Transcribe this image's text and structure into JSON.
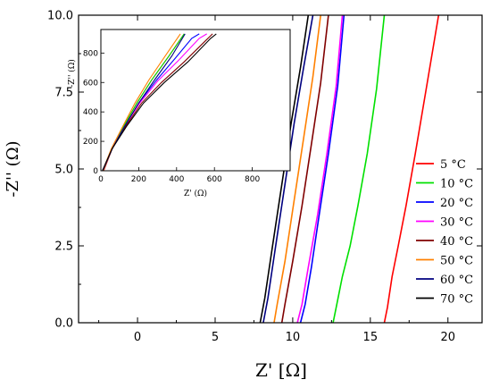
{
  "chart_data": [
    {
      "type": "line",
      "xlabel": "Z' [Ω]",
      "ylabel": "-Z'' (Ω)",
      "xlim": [
        -3.8,
        22.2
      ],
      "ylim": [
        0,
        10
      ],
      "xticks": [
        0,
        5,
        10,
        15,
        20
      ],
      "xtick_labels": [
        "0",
        "5",
        "10",
        "15",
        "20"
      ],
      "yticks": [
        0.0,
        2.5,
        5.0,
        7.5,
        10.0
      ],
      "ytick_labels": [
        "0.0",
        "2.5",
        "5.0",
        "7.5",
        "10.0"
      ],
      "grid": false,
      "legend_position": "right",
      "series": [
        {
          "name": "5 °C",
          "color": "#ff0000",
          "points": [
            [
              15.9,
              0
            ],
            [
              16.1,
              0.5
            ],
            [
              16.4,
              1.5
            ],
            [
              16.8,
              2.5
            ],
            [
              17.3,
              3.8
            ],
            [
              17.9,
              5.5
            ],
            [
              18.6,
              7.6
            ],
            [
              19.4,
              10
            ]
          ]
        },
        {
          "name": "10 °C",
          "color": "#00e000",
          "points": [
            [
              12.6,
              0
            ],
            [
              12.8,
              0.5
            ],
            [
              13.2,
              1.5
            ],
            [
              13.7,
              2.5
            ],
            [
              14.2,
              3.8
            ],
            [
              14.8,
              5.5
            ],
            [
              15.4,
              7.6
            ],
            [
              15.9,
              10
            ]
          ]
        },
        {
          "name": "20 °C",
          "color": "#0000ff",
          "points": [
            [
              10.5,
              0
            ],
            [
              10.8,
              0.6
            ],
            [
              11.2,
              1.8
            ],
            [
              11.7,
              3.5
            ],
            [
              12.3,
              5.5
            ],
            [
              12.9,
              7.7
            ],
            [
              13.3,
              10
            ]
          ]
        },
        {
          "name": "30 °C",
          "color": "#ff00ff",
          "points": [
            [
              10.3,
              0
            ],
            [
              10.6,
              0.6
            ],
            [
              11.0,
              1.8
            ],
            [
              11.6,
              3.5
            ],
            [
              12.2,
              5.5
            ],
            [
              12.8,
              7.7
            ],
            [
              13.2,
              10
            ]
          ]
        },
        {
          "name": "40 °C",
          "color": "#800000",
          "points": [
            [
              9.3,
              0
            ],
            [
              9.5,
              0.6
            ],
            [
              10.0,
              2.0
            ],
            [
              10.6,
              3.8
            ],
            [
              11.2,
              5.8
            ],
            [
              11.8,
              7.8
            ],
            [
              12.3,
              10
            ]
          ]
        },
        {
          "name": "50 °C",
          "color": "#ff8000",
          "points": [
            [
              8.8,
              0
            ],
            [
              9.0,
              0.6
            ],
            [
              9.5,
              2.0
            ],
            [
              10.1,
              4.0
            ],
            [
              10.7,
              6.0
            ],
            [
              11.3,
              8.0
            ],
            [
              11.8,
              10
            ]
          ]
        },
        {
          "name": "60 °C",
          "color": "#000080",
          "points": [
            [
              8.1,
              0
            ],
            [
              8.4,
              0.8
            ],
            [
              8.9,
              2.5
            ],
            [
              9.5,
              4.5
            ],
            [
              10.1,
              6.5
            ],
            [
              10.7,
              8.3
            ],
            [
              11.3,
              10
            ]
          ]
        },
        {
          "name": "70 °C",
          "color": "#000000",
          "points": [
            [
              7.9,
              0
            ],
            [
              8.2,
              0.8
            ],
            [
              8.7,
              2.5
            ],
            [
              9.3,
              4.5
            ],
            [
              9.9,
              6.5
            ],
            [
              10.5,
              8.3
            ],
            [
              11.0,
              10
            ]
          ]
        }
      ]
    },
    {
      "type": "line",
      "xlabel": "Z' (Ω)",
      "ylabel": "-Z'' (Ω)",
      "xlim": [
        0,
        1000
      ],
      "ylim": [
        0,
        960
      ],
      "xticks": [
        0,
        200,
        400,
        600,
        800
      ],
      "xtick_labels": [
        "0",
        "200",
        "400",
        "600",
        "800"
      ],
      "yticks": [
        0,
        200,
        400,
        600,
        800
      ],
      "ytick_labels": [
        "0",
        "200",
        "400",
        "600",
        "800"
      ],
      "grid": false,
      "series": [
        {
          "name": "5 °C",
          "color": "#ff0000",
          "points": [
            [
              15,
              0
            ],
            [
              60,
              150
            ],
            [
              120,
              300
            ],
            [
              190,
              460
            ],
            [
              270,
              620
            ],
            [
              360,
              780
            ],
            [
              440,
              930
            ]
          ]
        },
        {
          "name": "10 °C",
          "color": "#00e000",
          "points": [
            [
              12,
              0
            ],
            [
              60,
              150
            ],
            [
              120,
              300
            ],
            [
              190,
              460
            ],
            [
              270,
              620
            ],
            [
              360,
              780
            ],
            [
              440,
              930
            ]
          ]
        },
        {
          "name": "20 °C",
          "color": "#0000ff",
          "points": [
            [
              10,
              0
            ],
            [
              60,
              150
            ],
            [
              125,
              300
            ],
            [
              200,
              460
            ],
            [
              290,
              610
            ],
            [
              390,
              760
            ],
            [
              480,
              900
            ],
            [
              520,
              930
            ]
          ]
        },
        {
          "name": "30 °C",
          "color": "#ff00ff",
          "points": [
            [
              10,
              0
            ],
            [
              60,
              150
            ],
            [
              125,
              300
            ],
            [
              205,
              460
            ],
            [
              300,
              610
            ],
            [
              410,
              750
            ],
            [
              520,
              900
            ],
            [
              560,
              930
            ]
          ]
        },
        {
          "name": "40 °C",
          "color": "#800000",
          "points": [
            [
              9,
              0
            ],
            [
              60,
              150
            ],
            [
              130,
              300
            ],
            [
              215,
              460
            ],
            [
              320,
              600
            ],
            [
              440,
              740
            ],
            [
              550,
              880
            ],
            [
              590,
              930
            ]
          ]
        },
        {
          "name": "50 °C",
          "color": "#ff8000",
          "points": [
            [
              9,
              0
            ],
            [
              55,
              150
            ],
            [
              115,
              300
            ],
            [
              180,
              460
            ],
            [
              255,
              620
            ],
            [
              340,
              780
            ],
            [
              420,
              930
            ]
          ]
        },
        {
          "name": "60 °C",
          "color": "#000080",
          "points": [
            [
              8,
              0
            ],
            [
              60,
              150
            ],
            [
              125,
              300
            ],
            [
              200,
              460
            ],
            [
              285,
              620
            ],
            [
              375,
              780
            ],
            [
              445,
              930
            ]
          ]
        },
        {
          "name": "70 °C",
          "color": "#000000",
          "points": [
            [
              8,
              0
            ],
            [
              60,
              150
            ],
            [
              135,
              300
            ],
            [
              225,
              460
            ],
            [
              335,
              600
            ],
            [
              460,
              740
            ],
            [
              580,
              900
            ],
            [
              610,
              930
            ]
          ]
        }
      ]
    }
  ]
}
